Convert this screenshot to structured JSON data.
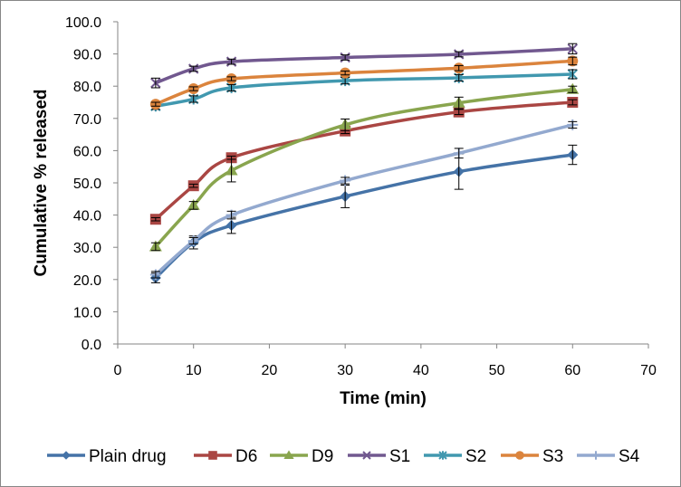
{
  "chart_data": {
    "type": "line",
    "title": "",
    "xlabel": "Time (min)",
    "ylabel": "Cumulative % released",
    "xlim": [
      0,
      70
    ],
    "ylim": [
      0,
      100
    ],
    "x_ticks": [
      0,
      10,
      20,
      30,
      40,
      50,
      60,
      70
    ],
    "x_tick_labels": [
      "0",
      "10",
      "20",
      "30",
      "40",
      "50",
      "60",
      "70"
    ],
    "y_ticks": [
      0,
      10,
      20,
      30,
      40,
      50,
      60,
      70,
      80,
      90,
      100
    ],
    "y_tick_labels": [
      "0.0",
      "10.0",
      "20.0",
      "30.0",
      "40.0",
      "50.0",
      "60.0",
      "70.0",
      "80.0",
      "90.0",
      "100.0"
    ],
    "grid": false,
    "smoothed": true,
    "error_bars": true,
    "legend_position": "bottom",
    "x": [
      5,
      10,
      15,
      30,
      45,
      60
    ],
    "series": [
      {
        "name": "Plain drug",
        "color": "#4573A7",
        "marker": "diamond",
        "values": [
          20.5,
          31.5,
          36.8,
          45.8,
          53.5,
          58.7
        ],
        "errors": [
          1.5,
          2.0,
          2.5,
          3.5,
          5.5,
          3.0
        ]
      },
      {
        "name": "D6",
        "color": "#AA4643",
        "marker": "square",
        "values": [
          38.7,
          49.1,
          57.8,
          66.1,
          72.0,
          75.0
        ],
        "errors": [
          0.5,
          0.5,
          0.5,
          0.8,
          0.8,
          0.8
        ]
      },
      {
        "name": "D9",
        "color": "#89A54E",
        "marker": "triangle",
        "values": [
          30.2,
          43.0,
          53.8,
          68.0,
          74.8,
          79.0
        ],
        "errors": [
          1.2,
          1.2,
          3.5,
          1.8,
          1.8,
          1.0
        ]
      },
      {
        "name": "S1",
        "color": "#71588F",
        "marker": "x",
        "values": [
          81.0,
          85.4,
          87.6,
          88.9,
          89.9,
          91.6
        ],
        "errors": [
          1.5,
          0.8,
          0.8,
          0.8,
          0.8,
          1.6
        ]
      },
      {
        "name": "S2",
        "color": "#4198AF",
        "marker": "asterisk",
        "values": [
          73.8,
          76.0,
          79.5,
          81.7,
          82.6,
          83.7
        ],
        "errors": [
          1.0,
          1.0,
          1.0,
          1.0,
          1.0,
          1.4
        ]
      },
      {
        "name": "S3",
        "color": "#DB843D",
        "marker": "circle",
        "values": [
          74.4,
          79.2,
          82.3,
          84.1,
          85.6,
          87.8
        ],
        "errors": [
          0.6,
          0.6,
          0.6,
          0.6,
          0.8,
          1.2
        ]
      },
      {
        "name": "S4",
        "color": "#93A9CF",
        "marker": "plus",
        "values": [
          21.5,
          32.0,
          40.0,
          50.7,
          59.2,
          68.0
        ],
        "errors": [
          1.0,
          1.0,
          1.2,
          1.0,
          1.5,
          1.0
        ]
      }
    ]
  }
}
